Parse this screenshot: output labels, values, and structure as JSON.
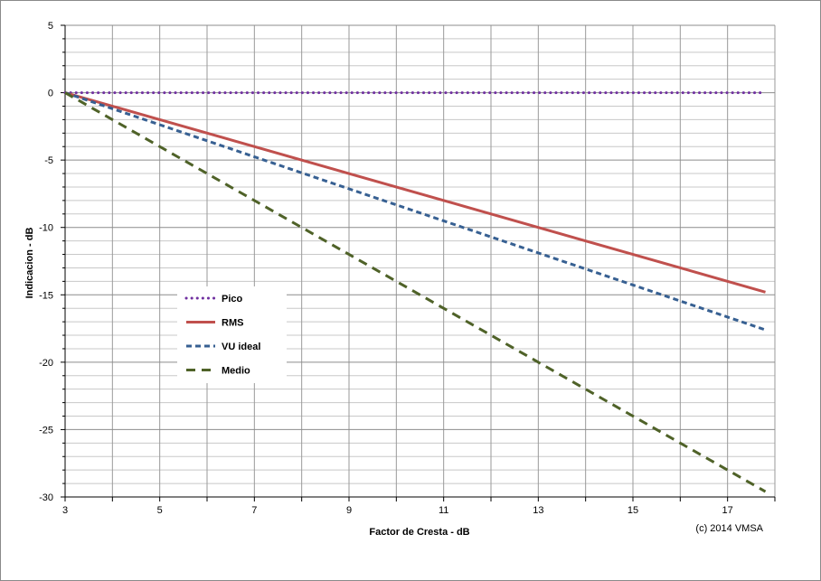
{
  "chart_data": {
    "type": "line",
    "title": "",
    "xlabel": "Factor de Cresta  -  dB",
    "ylabel": "Indicacion   -  dB",
    "xlim": [
      3,
      18
    ],
    "ylim": [
      -30,
      5
    ],
    "x_ticks": [
      3,
      5,
      7,
      9,
      11,
      13,
      15,
      17
    ],
    "x_tick_labels": [
      "3",
      "5",
      "7",
      "9",
      "11",
      "13",
      "15",
      "17"
    ],
    "y_ticks": [
      5,
      0,
      -5,
      -10,
      -15,
      -20,
      -25,
      -30
    ],
    "y_tick_labels": [
      "5",
      "0",
      "-5",
      "-10",
      "-15",
      "-20",
      "-25",
      "-30"
    ],
    "grid": true,
    "legend_position": "center-left",
    "annotation": "(c) 2014 VMSA",
    "series": [
      {
        "name": "Pico",
        "color": "#7030a0",
        "style": "dotted",
        "x": [
          3,
          17.8
        ],
        "y": [
          0,
          0
        ]
      },
      {
        "name": "RMS",
        "color": "#c0504d",
        "style": "solid",
        "x": [
          3,
          17.8
        ],
        "y": [
          0,
          -14.8
        ]
      },
      {
        "name": "VU ideal",
        "color": "#376092",
        "style": "dashed",
        "x": [
          3,
          17.8
        ],
        "y": [
          0,
          -17.6
        ]
      },
      {
        "name": "Medio",
        "color": "#4f6228",
        "style": "long-dashed",
        "x": [
          3,
          17.8
        ],
        "y": [
          0,
          -29.6
        ]
      }
    ]
  }
}
